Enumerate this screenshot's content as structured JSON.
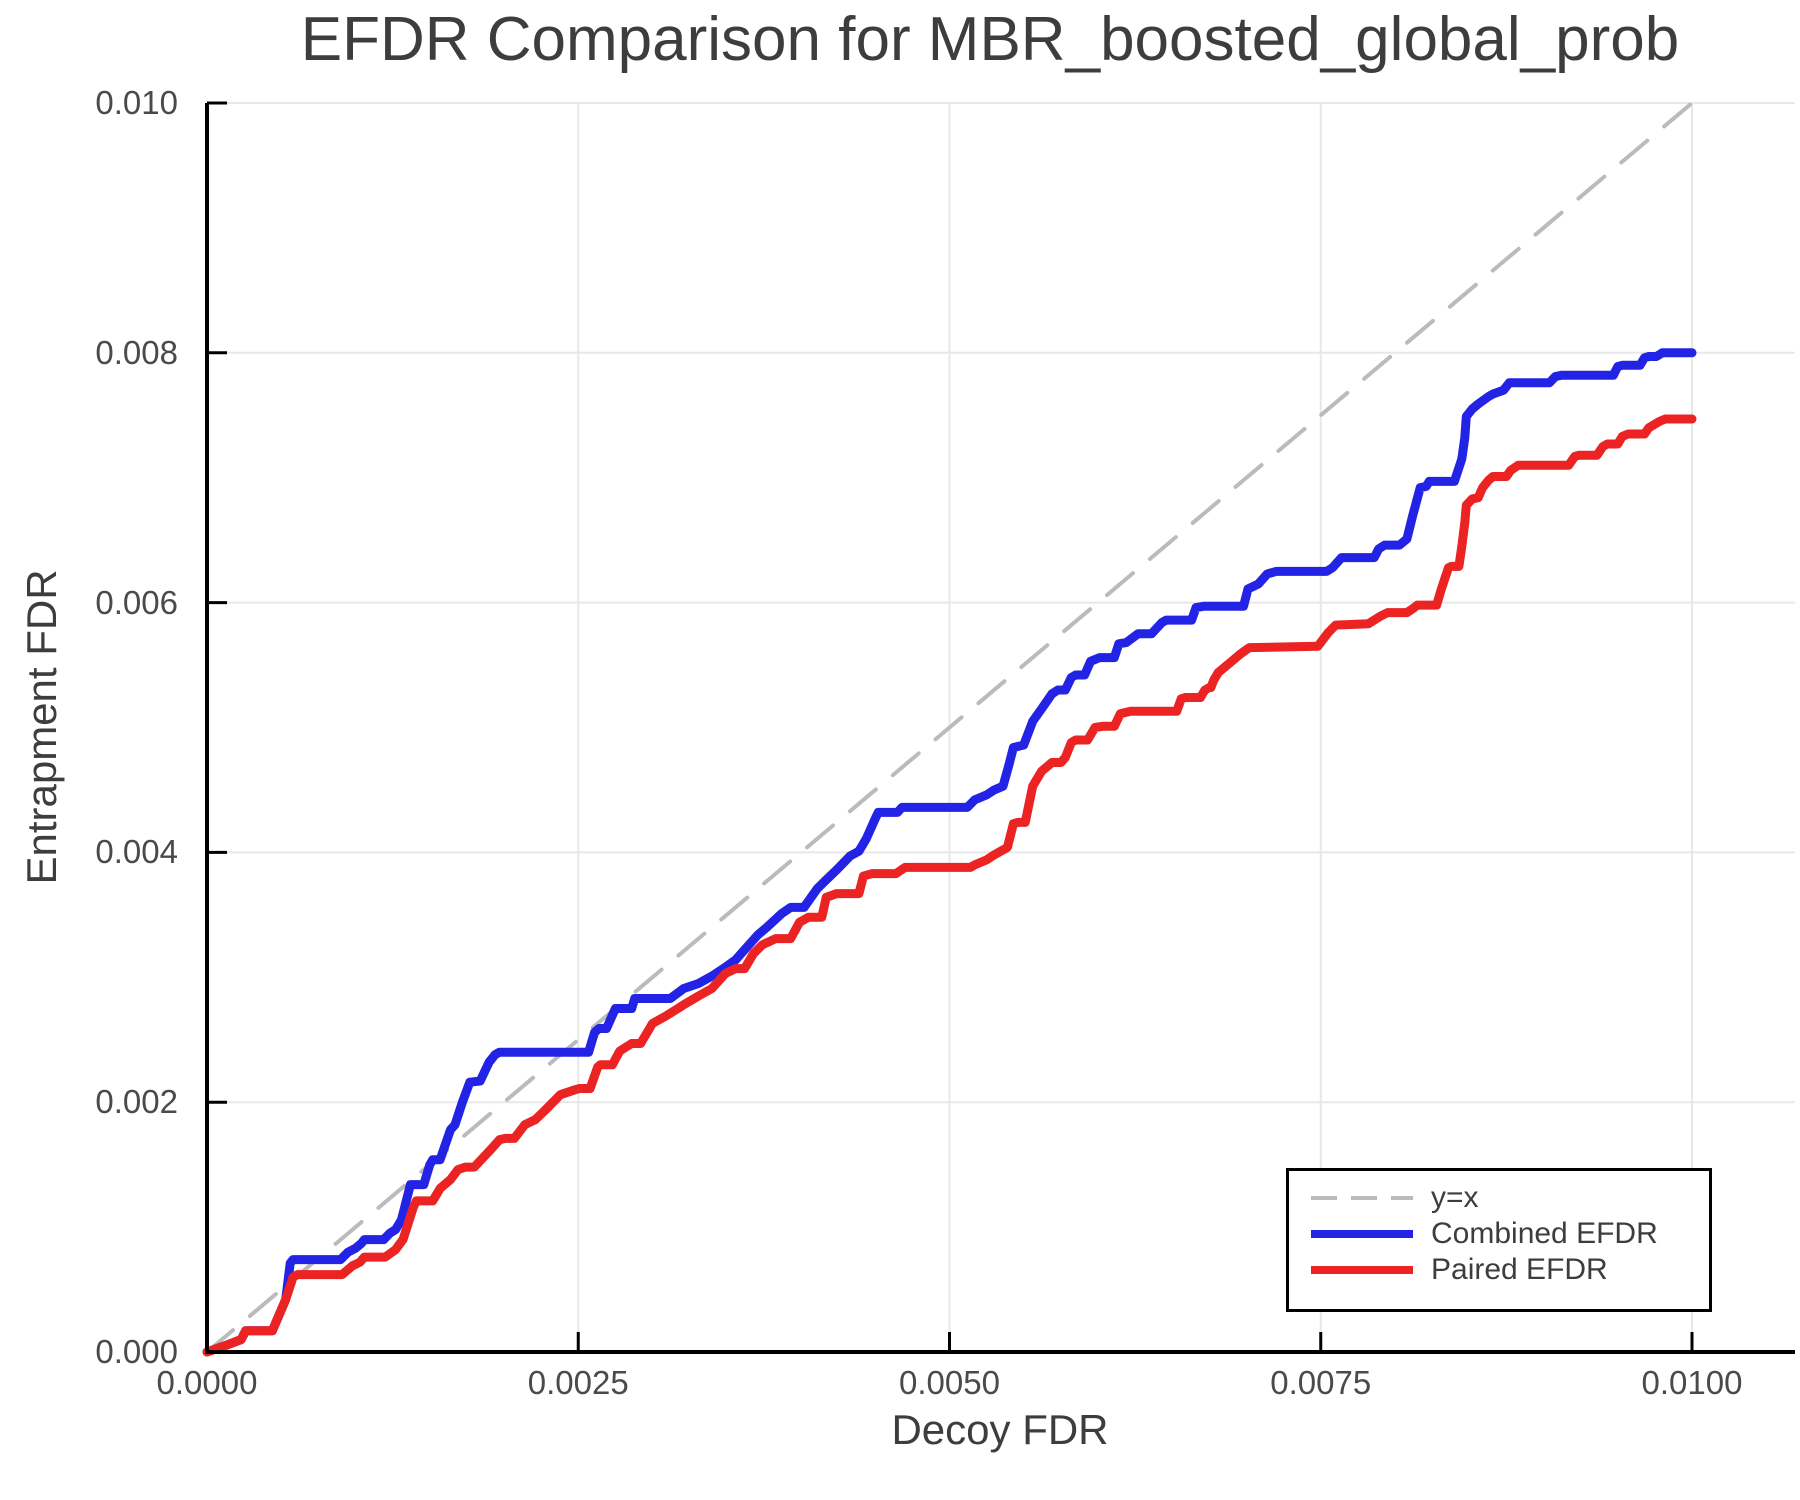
{
  "chart_data": {
    "type": "line",
    "title": "EFDR Comparison for MBR_boosted_global_prob",
    "xlabel": "Decoy FDR",
    "ylabel": "Entrapment FDR",
    "xlim": [
      0,
      0.01
    ],
    "ylim": [
      0,
      0.01
    ],
    "grid": true,
    "legend_position": "lower right",
    "x_ticks": {
      "values": [
        0,
        0.0025,
        0.005,
        0.0075,
        0.01
      ],
      "labels": [
        "0.0000",
        "0.0025",
        "0.0050",
        "0.0075",
        "0.0100"
      ]
    },
    "y_ticks": {
      "values": [
        0,
        0.002,
        0.004,
        0.006,
        0.008,
        0.01
      ],
      "labels": [
        "0.000",
        "0.002",
        "0.004",
        "0.006",
        "0.008",
        "0.010"
      ]
    },
    "reference_line": {
      "label": "y=x",
      "style": "dashed",
      "color": "#bbbbbb",
      "points": [
        [
          0,
          0
        ],
        [
          0.01,
          0.01
        ]
      ]
    },
    "series": [
      {
        "name": "Combined EFDR",
        "color": "#2323e6",
        "points": [
          [
            0,
            0
          ],
          [
            0.00012,
            5e-05
          ],
          [
            0.00023,
            0.0001
          ],
          [
            0.00026,
            0.00017
          ],
          [
            0.00044,
            0.00017
          ],
          [
            0.00053,
            0.00042
          ],
          [
            0.00056,
            0.00071
          ],
          [
            0.00058,
            0.00074
          ],
          [
            0.0009,
            0.00074
          ],
          [
            0.00095,
            0.0008
          ],
          [
            0.001,
            0.00083
          ],
          [
            0.00104,
            0.00087
          ],
          [
            0.00106,
            0.0009
          ],
          [
            0.00119,
            0.0009
          ],
          [
            0.00123,
            0.00095
          ],
          [
            0.00127,
            0.00098
          ],
          [
            0.00131,
            0.00106
          ],
          [
            0.00137,
            0.00134
          ],
          [
            0.00146,
            0.00134
          ],
          [
            0.0015,
            0.0015
          ],
          [
            0.00152,
            0.00154
          ],
          [
            0.00157,
            0.00154
          ],
          [
            0.00164,
            0.00178
          ],
          [
            0.00167,
            0.00182
          ],
          [
            0.00172,
            0.002
          ],
          [
            0.00177,
            0.00216
          ],
          [
            0.00184,
            0.00217
          ],
          [
            0.0019,
            0.00232
          ],
          [
            0.00194,
            0.00238
          ],
          [
            0.00197,
            0.0024
          ],
          [
            0.00257,
            0.0024
          ],
          [
            0.00261,
            0.00256
          ],
          [
            0.00264,
            0.00259
          ],
          [
            0.00269,
            0.00259
          ],
          [
            0.00275,
            0.00275
          ],
          [
            0.00286,
            0.00275
          ],
          [
            0.00288,
            0.00283
          ],
          [
            0.00312,
            0.00283
          ],
          [
            0.00321,
            0.00291
          ],
          [
            0.00331,
            0.00295
          ],
          [
            0.0034,
            0.00301
          ],
          [
            0.00349,
            0.00308
          ],
          [
            0.00356,
            0.00314
          ],
          [
            0.00362,
            0.00322
          ],
          [
            0.00371,
            0.00334
          ],
          [
            0.00377,
            0.0034
          ],
          [
            0.00387,
            0.00351
          ],
          [
            0.00393,
            0.00356
          ],
          [
            0.00402,
            0.00356
          ],
          [
            0.00411,
            0.00371
          ],
          [
            0.00417,
            0.00378
          ],
          [
            0.00424,
            0.00386
          ],
          [
            0.00433,
            0.00397
          ],
          [
            0.00439,
            0.00401
          ],
          [
            0.00444,
            0.00411
          ],
          [
            0.0045,
            0.00427
          ],
          [
            0.00452,
            0.00432
          ],
          [
            0.00465,
            0.00432
          ],
          [
            0.00468,
            0.00436
          ],
          [
            0.00512,
            0.00436
          ],
          [
            0.00517,
            0.00442
          ],
          [
            0.00525,
            0.00446
          ],
          [
            0.0053,
            0.0045
          ],
          [
            0.00536,
            0.00453
          ],
          [
            0.0054,
            0.0047
          ],
          [
            0.00543,
            0.00484
          ],
          [
            0.0055,
            0.00486
          ],
          [
            0.00556,
            0.00505
          ],
          [
            0.00562,
            0.00515
          ],
          [
            0.00569,
            0.00527
          ],
          [
            0.00573,
            0.0053
          ],
          [
            0.00578,
            0.0053
          ],
          [
            0.00582,
            0.0054
          ],
          [
            0.00585,
            0.00542
          ],
          [
            0.00591,
            0.00542
          ],
          [
            0.00595,
            0.00553
          ],
          [
            0.00601,
            0.00556
          ],
          [
            0.00611,
            0.00556
          ],
          [
            0.00614,
            0.00567
          ],
          [
            0.00619,
            0.00568
          ],
          [
            0.00627,
            0.00575
          ],
          [
            0.00636,
            0.00575
          ],
          [
            0.00643,
            0.00584
          ],
          [
            0.00646,
            0.00586
          ],
          [
            0.00663,
            0.00586
          ],
          [
            0.00666,
            0.00596
          ],
          [
            0.00671,
            0.00597
          ],
          [
            0.00698,
            0.00597
          ],
          [
            0.00701,
            0.00611
          ],
          [
            0.00708,
            0.00615
          ],
          [
            0.00714,
            0.00623
          ],
          [
            0.0072,
            0.00625
          ],
          [
            0.00754,
            0.00625
          ],
          [
            0.00758,
            0.00628
          ],
          [
            0.00764,
            0.00636
          ],
          [
            0.00786,
            0.00636
          ],
          [
            0.00789,
            0.00643
          ],
          [
            0.00793,
            0.00646
          ],
          [
            0.00803,
            0.00646
          ],
          [
            0.00808,
            0.00651
          ],
          [
            0.00812,
            0.0067
          ],
          [
            0.00817,
            0.00692
          ],
          [
            0.00821,
            0.00693
          ],
          [
            0.00823,
            0.00697
          ],
          [
            0.0084,
            0.00697
          ],
          [
            0.00845,
            0.00715
          ],
          [
            0.00847,
            0.00732
          ],
          [
            0.00848,
            0.00749
          ],
          [
            0.00852,
            0.00755
          ],
          [
            0.00856,
            0.00759
          ],
          [
            0.00863,
            0.00765
          ],
          [
            0.00866,
            0.00767
          ],
          [
            0.00873,
            0.0077
          ],
          [
            0.00877,
            0.00776
          ],
          [
            0.00904,
            0.00776
          ],
          [
            0.00908,
            0.00781
          ],
          [
            0.00912,
            0.00782
          ],
          [
            0.00947,
            0.00782
          ],
          [
            0.0095,
            0.00789
          ],
          [
            0.00953,
            0.0079
          ],
          [
            0.00965,
            0.0079
          ],
          [
            0.00968,
            0.00796
          ],
          [
            0.00971,
            0.00797
          ],
          [
            0.00976,
            0.00797
          ],
          [
            0.0098,
            0.008
          ],
          [
            0.01,
            0.008
          ]
        ]
      },
      {
        "name": "Paired EFDR",
        "color": "#eb2323",
        "points": [
          [
            0,
            0
          ],
          [
            0.00012,
            5e-05
          ],
          [
            0.00023,
            0.0001
          ],
          [
            0.00026,
            0.00017
          ],
          [
            0.00044,
            0.00017
          ],
          [
            0.00053,
            0.00042
          ],
          [
            0.00058,
            0.0006
          ],
          [
            0.00061,
            0.00062
          ],
          [
            0.00091,
            0.00062
          ],
          [
            0.00098,
            0.00069
          ],
          [
            0.00103,
            0.00072
          ],
          [
            0.00106,
            0.00076
          ],
          [
            0.0012,
            0.00076
          ],
          [
            0.00127,
            0.00082
          ],
          [
            0.00132,
            0.0009
          ],
          [
            0.00139,
            0.00116
          ],
          [
            0.00141,
            0.00121
          ],
          [
            0.00152,
            0.00121
          ],
          [
            0.00157,
            0.00131
          ],
          [
            0.00164,
            0.00138
          ],
          [
            0.00169,
            0.00146
          ],
          [
            0.00174,
            0.00148
          ],
          [
            0.0018,
            0.00148
          ],
          [
            0.00191,
            0.00162
          ],
          [
            0.00197,
            0.0017
          ],
          [
            0.00201,
            0.00171
          ],
          [
            0.00207,
            0.00171
          ],
          [
            0.00214,
            0.00182
          ],
          [
            0.00221,
            0.00186
          ],
          [
            0.00228,
            0.00194
          ],
          [
            0.00238,
            0.00206
          ],
          [
            0.00248,
            0.0021
          ],
          [
            0.00251,
            0.00211
          ],
          [
            0.00258,
            0.00211
          ],
          [
            0.00263,
            0.00228
          ],
          [
            0.00265,
            0.0023
          ],
          [
            0.00273,
            0.0023
          ],
          [
            0.00278,
            0.00241
          ],
          [
            0.00286,
            0.00247
          ],
          [
            0.00292,
            0.00247
          ],
          [
            0.003,
            0.00263
          ],
          [
            0.00309,
            0.00269
          ],
          [
            0.00321,
            0.00278
          ],
          [
            0.00331,
            0.00285
          ],
          [
            0.0034,
            0.00291
          ],
          [
            0.00349,
            0.00303
          ],
          [
            0.00356,
            0.00307
          ],
          [
            0.00362,
            0.00307
          ],
          [
            0.00368,
            0.00319
          ],
          [
            0.00374,
            0.00326
          ],
          [
            0.00383,
            0.00331
          ],
          [
            0.00393,
            0.00331
          ],
          [
            0.00399,
            0.00344
          ],
          [
            0.00405,
            0.00348
          ],
          [
            0.00414,
            0.00348
          ],
          [
            0.00417,
            0.00364
          ],
          [
            0.00424,
            0.00367
          ],
          [
            0.00439,
            0.00367
          ],
          [
            0.00442,
            0.00381
          ],
          [
            0.00448,
            0.00383
          ],
          [
            0.00464,
            0.00383
          ],
          [
            0.0047,
            0.00388
          ],
          [
            0.00514,
            0.00388
          ],
          [
            0.00517,
            0.0039
          ],
          [
            0.00525,
            0.00394
          ],
          [
            0.0053,
            0.00398
          ],
          [
            0.00539,
            0.00404
          ],
          [
            0.00543,
            0.00423
          ],
          [
            0.00546,
            0.00424
          ],
          [
            0.00551,
            0.00424
          ],
          [
            0.00556,
            0.00453
          ],
          [
            0.00562,
            0.00465
          ],
          [
            0.00569,
            0.00472
          ],
          [
            0.00575,
            0.00472
          ],
          [
            0.00578,
            0.00476
          ],
          [
            0.00582,
            0.00488
          ],
          [
            0.00585,
            0.0049
          ],
          [
            0.00593,
            0.0049
          ],
          [
            0.00598,
            0.005
          ],
          [
            0.00603,
            0.00501
          ],
          [
            0.00611,
            0.00501
          ],
          [
            0.00615,
            0.00511
          ],
          [
            0.00622,
            0.00513
          ],
          [
            0.00653,
            0.00513
          ],
          [
            0.00656,
            0.00523
          ],
          [
            0.00659,
            0.00524
          ],
          [
            0.00669,
            0.00524
          ],
          [
            0.00672,
            0.0053
          ],
          [
            0.00675,
            0.00532
          ],
          [
            0.00676,
            0.00532
          ],
          [
            0.00678,
            0.00538
          ],
          [
            0.00681,
            0.00544
          ],
          [
            0.00689,
            0.00552
          ],
          [
            0.00696,
            0.00559
          ],
          [
            0.00702,
            0.00564
          ],
          [
            0.00748,
            0.00565
          ],
          [
            0.00755,
            0.00576
          ],
          [
            0.0076,
            0.00582
          ],
          [
            0.00782,
            0.00583
          ],
          [
            0.0079,
            0.00589
          ],
          [
            0.00795,
            0.00592
          ],
          [
            0.00808,
            0.00592
          ],
          [
            0.00813,
            0.00596
          ],
          [
            0.00815,
            0.00598
          ],
          [
            0.00828,
            0.00598
          ],
          [
            0.00831,
            0.0061
          ],
          [
            0.00836,
            0.00628
          ],
          [
            0.00838,
            0.00629
          ],
          [
            0.00843,
            0.00629
          ],
          [
            0.00845,
            0.00645
          ],
          [
            0.00847,
            0.00664
          ],
          [
            0.00848,
            0.00678
          ],
          [
            0.00852,
            0.00683
          ],
          [
            0.00856,
            0.00684
          ],
          [
            0.00859,
            0.00692
          ],
          [
            0.00863,
            0.00698
          ],
          [
            0.00866,
            0.00701
          ],
          [
            0.00875,
            0.00701
          ],
          [
            0.00878,
            0.00706
          ],
          [
            0.00883,
            0.0071
          ],
          [
            0.00917,
            0.0071
          ],
          [
            0.00921,
            0.00717
          ],
          [
            0.00924,
            0.00718
          ],
          [
            0.00936,
            0.00718
          ],
          [
            0.0094,
            0.00725
          ],
          [
            0.00943,
            0.00727
          ],
          [
            0.0095,
            0.00727
          ],
          [
            0.00953,
            0.00733
          ],
          [
            0.00957,
            0.00735
          ],
          [
            0.00968,
            0.00735
          ],
          [
            0.00971,
            0.0074
          ],
          [
            0.00978,
            0.00745
          ],
          [
            0.00982,
            0.00747
          ],
          [
            0.01,
            0.00747
          ]
        ]
      }
    ]
  },
  "style": {
    "grid_color": "#e8e8e8",
    "axis_color": "#000000",
    "text_color": "#3d3d3d",
    "tick_text_color": "#4a4a4a",
    "background": "#ffffff"
  },
  "legend": {
    "entries": [
      {
        "label": "y=x",
        "style": "dashed",
        "color": "#bbbbbb"
      },
      {
        "label": "Combined EFDR",
        "style": "solid",
        "color": "#2323e6"
      },
      {
        "label": "Paired EFDR",
        "style": "solid",
        "color": "#eb2323"
      }
    ]
  }
}
